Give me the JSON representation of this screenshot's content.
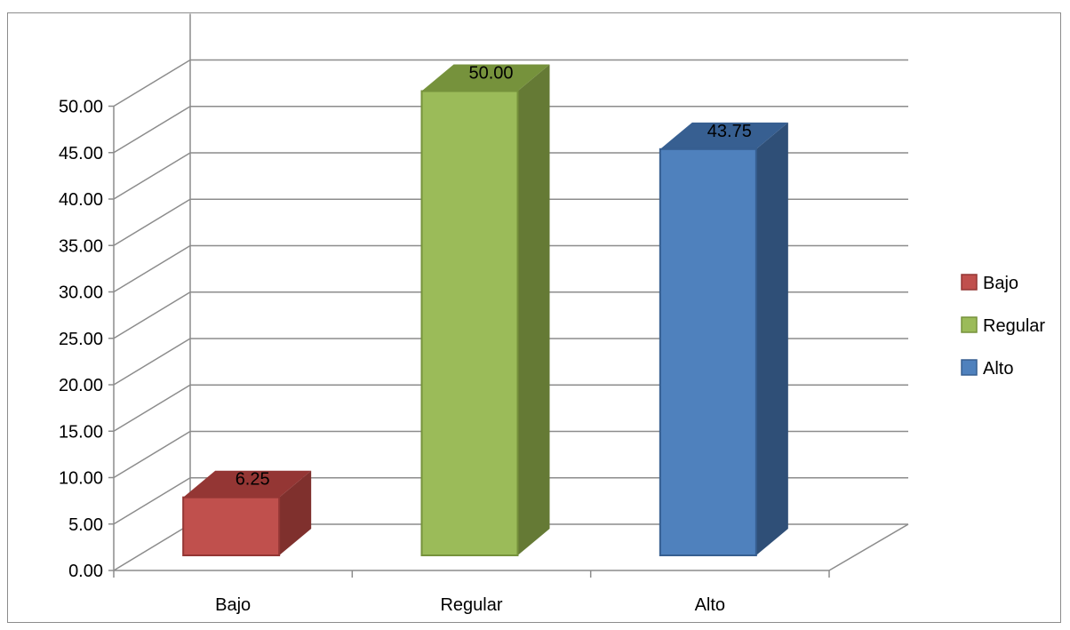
{
  "chart_data": {
    "type": "bar",
    "three_d": true,
    "categories": [
      "Bajo",
      "Regular",
      "Alto"
    ],
    "values": [
      6.25,
      50.0,
      43.75
    ],
    "data_labels": [
      "6.25",
      "50.00",
      "43.75"
    ],
    "ylim": [
      0,
      50
    ],
    "y_ticks": [
      "0.00",
      "5.00",
      "10.00",
      "15.00",
      "20.00",
      "25.00",
      "30.00",
      "35.00",
      "40.00",
      "45.00",
      "50.00"
    ],
    "title": "",
    "xlabel": "",
    "ylabel": "",
    "grid": true,
    "legend": {
      "placement": "right",
      "items": [
        {
          "label": "Bajo",
          "color": "#C0504D"
        },
        {
          "label": "Regular",
          "color": "#9BBB59"
        },
        {
          "label": "Alto",
          "color": "#4F81BD"
        }
      ]
    },
    "colors": {
      "Bajo": {
        "front": "#C0504D",
        "side": "#7F302D",
        "top": "#943634"
      },
      "Regular": {
        "front": "#9BBB59",
        "side": "#657A35",
        "top": "#76923C"
      },
      "Alto": {
        "front": "#4F81BD",
        "side": "#2F4F77",
        "top": "#375F91"
      }
    }
  }
}
